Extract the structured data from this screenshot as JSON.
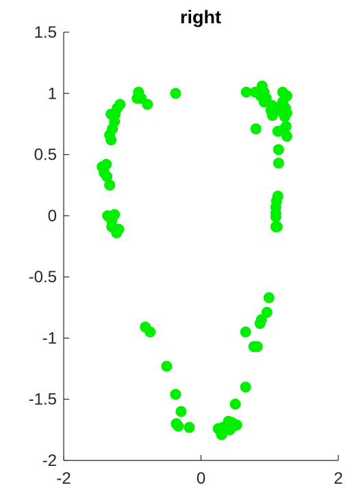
{
  "chart_data": {
    "type": "scatter",
    "title": "right",
    "xlabel": "",
    "ylabel": "",
    "xlim": [
      -2,
      2
    ],
    "ylim": [
      -2,
      1.5
    ],
    "xticks": [
      -2,
      0,
      2
    ],
    "yticks": [
      -2,
      -1.5,
      -1,
      -0.5,
      0,
      0.5,
      1,
      1.5
    ],
    "xtick_labels": [
      "-2",
      "0",
      "2"
    ],
    "ytick_labels": [
      "-2",
      "-1.5",
      "-1",
      "-0.5",
      "0",
      "0.5",
      "1",
      "1.5"
    ],
    "grid": false,
    "marker_color": "#00ee00",
    "axis_color": "#262626",
    "series": [
      {
        "points": [
          {
            "x": -0.91,
            "y": 1.01
          },
          {
            "x": -0.93,
            "y": 0.96
          },
          {
            "x": -0.87,
            "y": 0.96
          },
          {
            "x": -0.78,
            "y": 0.91
          },
          {
            "x": -0.37,
            "y": 1.0
          },
          {
            "x": -1.18,
            "y": 0.91
          },
          {
            "x": -1.22,
            "y": 0.88
          },
          {
            "x": -1.25,
            "y": 0.83
          },
          {
            "x": -1.31,
            "y": 0.83
          },
          {
            "x": -1.26,
            "y": 0.77
          },
          {
            "x": -1.29,
            "y": 0.71
          },
          {
            "x": -1.33,
            "y": 0.66
          },
          {
            "x": -1.31,
            "y": 0.62
          },
          {
            "x": -1.38,
            "y": 0.42
          },
          {
            "x": -1.44,
            "y": 0.4
          },
          {
            "x": -1.41,
            "y": 0.35
          },
          {
            "x": -1.37,
            "y": 0.32
          },
          {
            "x": -1.33,
            "y": 0.25
          },
          {
            "x": -1.36,
            "y": 0.0
          },
          {
            "x": -1.26,
            "y": 0.01
          },
          {
            "x": -1.3,
            "y": -0.04
          },
          {
            "x": -1.3,
            "y": -0.09
          },
          {
            "x": -1.2,
            "y": -0.11
          },
          {
            "x": -1.23,
            "y": -0.14
          },
          {
            "x": 0.66,
            "y": 1.01
          },
          {
            "x": 0.79,
            "y": 1.01
          },
          {
            "x": 0.89,
            "y": 1.06
          },
          {
            "x": 0.92,
            "y": 1.01
          },
          {
            "x": 0.87,
            "y": 0.98
          },
          {
            "x": 0.95,
            "y": 0.96
          },
          {
            "x": 0.92,
            "y": 0.93
          },
          {
            "x": 1.04,
            "y": 0.9
          },
          {
            "x": 1.02,
            "y": 0.86
          },
          {
            "x": 1.04,
            "y": 0.82
          },
          {
            "x": 1.09,
            "y": 0.88
          },
          {
            "x": 1.19,
            "y": 1.01
          },
          {
            "x": 1.25,
            "y": 0.98
          },
          {
            "x": 1.19,
            "y": 0.93
          },
          {
            "x": 1.23,
            "y": 0.88
          },
          {
            "x": 1.18,
            "y": 0.85
          },
          {
            "x": 1.25,
            "y": 0.84
          },
          {
            "x": 1.22,
            "y": 0.81
          },
          {
            "x": 0.8,
            "y": 0.71
          },
          {
            "x": 1.12,
            "y": 0.69
          },
          {
            "x": 1.19,
            "y": 0.7
          },
          {
            "x": 1.24,
            "y": 0.73
          },
          {
            "x": 1.25,
            "y": 0.65
          },
          {
            "x": 1.13,
            "y": 0.54
          },
          {
            "x": 1.13,
            "y": 0.43
          },
          {
            "x": 1.12,
            "y": 0.16
          },
          {
            "x": 1.1,
            "y": 0.12
          },
          {
            "x": 1.09,
            "y": 0.07
          },
          {
            "x": 1.09,
            "y": 0.02
          },
          {
            "x": 1.09,
            "y": -0.01
          },
          {
            "x": 1.09,
            "y": -0.09
          },
          {
            "x": 1.11,
            "y": -0.09
          },
          {
            "x": 0.99,
            "y": -0.67
          },
          {
            "x": 0.96,
            "y": -0.79
          },
          {
            "x": 0.88,
            "y": -0.85
          },
          {
            "x": 0.86,
            "y": -0.88
          },
          {
            "x": 0.65,
            "y": -0.95
          },
          {
            "x": 0.77,
            "y": -1.07
          },
          {
            "x": 0.82,
            "y": -1.07
          },
          {
            "x": -0.81,
            "y": -0.91
          },
          {
            "x": -0.74,
            "y": -0.95
          },
          {
            "x": -0.5,
            "y": -1.23
          },
          {
            "x": -0.37,
            "y": -1.46
          },
          {
            "x": -0.29,
            "y": -1.6
          },
          {
            "x": -0.36,
            "y": -1.7
          },
          {
            "x": -0.33,
            "y": -1.72
          },
          {
            "x": -0.17,
            "y": -1.73
          },
          {
            "x": 0.65,
            "y": -1.4
          },
          {
            "x": 0.5,
            "y": -1.54
          },
          {
            "x": 0.4,
            "y": -1.68
          },
          {
            "x": 0.45,
            "y": -1.69
          },
          {
            "x": 0.52,
            "y": -1.71
          },
          {
            "x": 0.47,
            "y": -1.72
          },
          {
            "x": 0.37,
            "y": -1.72
          },
          {
            "x": 0.42,
            "y": -1.75
          },
          {
            "x": 0.32,
            "y": -1.73
          },
          {
            "x": 0.25,
            "y": -1.74
          },
          {
            "x": 0.3,
            "y": -1.76
          },
          {
            "x": 0.3,
            "y": -1.79
          }
        ]
      }
    ]
  }
}
